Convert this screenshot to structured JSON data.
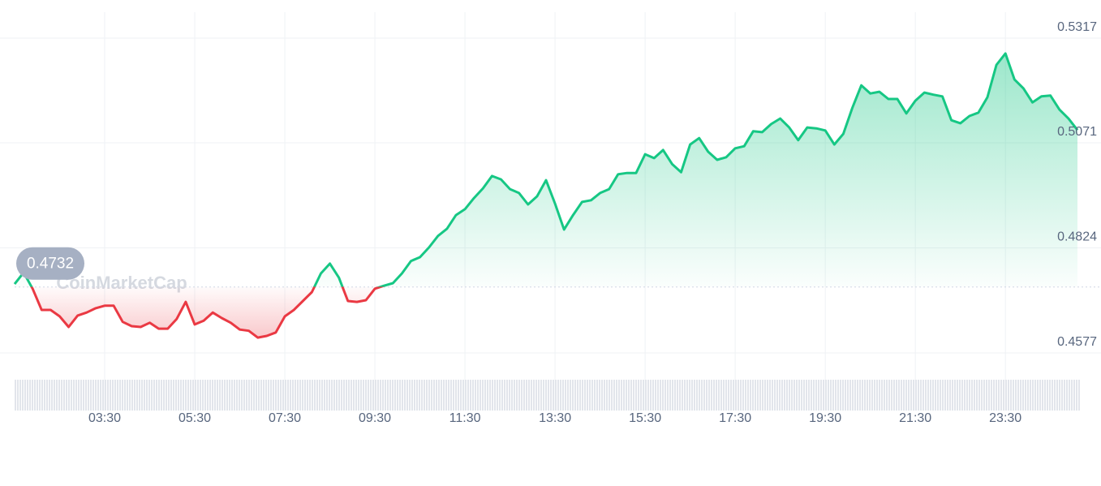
{
  "chart_data": {
    "type": "line",
    "watermark": "CoinMarketCap",
    "reference_value": 0.4732,
    "up_color": "#16c784",
    "down_color": "#ea3943",
    "grid": true,
    "xlim": [
      1.5,
      25.1
    ],
    "xticks": [
      {
        "value": 3.5,
        "label": "03:30"
      },
      {
        "value": 5.5,
        "label": "05:30"
      },
      {
        "value": 7.5,
        "label": "07:30"
      },
      {
        "value": 9.5,
        "label": "09:30"
      },
      {
        "value": 11.5,
        "label": "11:30"
      },
      {
        "value": 13.5,
        "label": "13:30"
      },
      {
        "value": 15.5,
        "label": "15:30"
      },
      {
        "value": 17.5,
        "label": "17:30"
      },
      {
        "value": 19.5,
        "label": "19:30"
      },
      {
        "value": 21.5,
        "label": "21:30"
      },
      {
        "value": 23.5,
        "label": "23:30"
      }
    ],
    "ylim": [
      0.4577,
      0.5317
    ],
    "yticks": [
      0.4577,
      0.4824,
      0.5071,
      0.5317
    ],
    "x": [
      1.5,
      1.7,
      1.9,
      2.1,
      2.3,
      2.5,
      2.7,
      2.9,
      3.1,
      3.3,
      3.5,
      3.7,
      3.9,
      4.1,
      4.3,
      4.5,
      4.7,
      4.9,
      5.1,
      5.3,
      5.5,
      5.7,
      5.9,
      6.1,
      6.3,
      6.5,
      6.7,
      6.9,
      7.1,
      7.3,
      7.5,
      7.7,
      7.9,
      8.1,
      8.3,
      8.5,
      8.7,
      8.9,
      9.1,
      9.3,
      9.5,
      9.7,
      9.9,
      10.1,
      10.3,
      10.5,
      10.7,
      10.9,
      11.1,
      11.3,
      11.5,
      11.7,
      11.9,
      12.1,
      12.3,
      12.5,
      12.7,
      12.9,
      13.1,
      13.3,
      13.5,
      13.7,
      13.9,
      14.1,
      14.3,
      14.5,
      14.7,
      14.9,
      15.1,
      15.3,
      15.5,
      15.7,
      15.9,
      16.1,
      16.3,
      16.5,
      16.7,
      16.9,
      17.1,
      17.3,
      17.5,
      17.7,
      17.9,
      18.1,
      18.3,
      18.5,
      18.7,
      18.9,
      19.1,
      19.3,
      19.5,
      19.7,
      19.9,
      20.1,
      20.3,
      20.5,
      20.7,
      20.9,
      21.1,
      21.3,
      21.5,
      21.7,
      21.9,
      22.1,
      22.3,
      22.5,
      22.7,
      22.9,
      23.1,
      23.3,
      23.5,
      23.7,
      23.9,
      24.1,
      24.3,
      24.5,
      24.7,
      24.9,
      25.1
    ],
    "values": [
      0.4739,
      0.4766,
      0.4728,
      0.4678,
      0.4678,
      0.4663,
      0.4638,
      0.4665,
      0.4672,
      0.4682,
      0.4688,
      0.4688,
      0.465,
      0.464,
      0.4638,
      0.4648,
      0.4634,
      0.4634,
      0.4657,
      0.4697,
      0.4644,
      0.4653,
      0.4672,
      0.4659,
      0.4648,
      0.4632,
      0.4629,
      0.4613,
      0.4617,
      0.4625,
      0.4663,
      0.4678,
      0.4699,
      0.472,
      0.4764,
      0.4787,
      0.4754,
      0.4699,
      0.4697,
      0.4701,
      0.4728,
      0.4735,
      0.4741,
      0.4764,
      0.4793,
      0.4802,
      0.4825,
      0.4852,
      0.4869,
      0.4901,
      0.4915,
      0.4941,
      0.4964,
      0.4993,
      0.4985,
      0.4962,
      0.4953,
      0.4926,
      0.4945,
      0.4983,
      0.4928,
      0.4867,
      0.4901,
      0.4932,
      0.4936,
      0.4953,
      0.4962,
      0.4997,
      0.5,
      0.5,
      0.5044,
      0.5035,
      0.5054,
      0.5021,
      0.5002,
      0.5067,
      0.5082,
      0.505,
      0.5031,
      0.5037,
      0.5058,
      0.5063,
      0.5098,
      0.5096,
      0.5115,
      0.5128,
      0.5107,
      0.5077,
      0.5107,
      0.5105,
      0.51,
      0.5067,
      0.5092,
      0.5153,
      0.5206,
      0.5187,
      0.5191,
      0.5174,
      0.5174,
      0.514,
      0.517,
      0.5189,
      0.5184,
      0.518,
      0.5124,
      0.5117,
      0.5134,
      0.5142,
      0.5178,
      0.5254,
      0.5281,
      0.522,
      0.5199,
      0.5166,
      0.518,
      0.5182,
      0.5149,
      0.5128,
      0.5101
    ]
  }
}
